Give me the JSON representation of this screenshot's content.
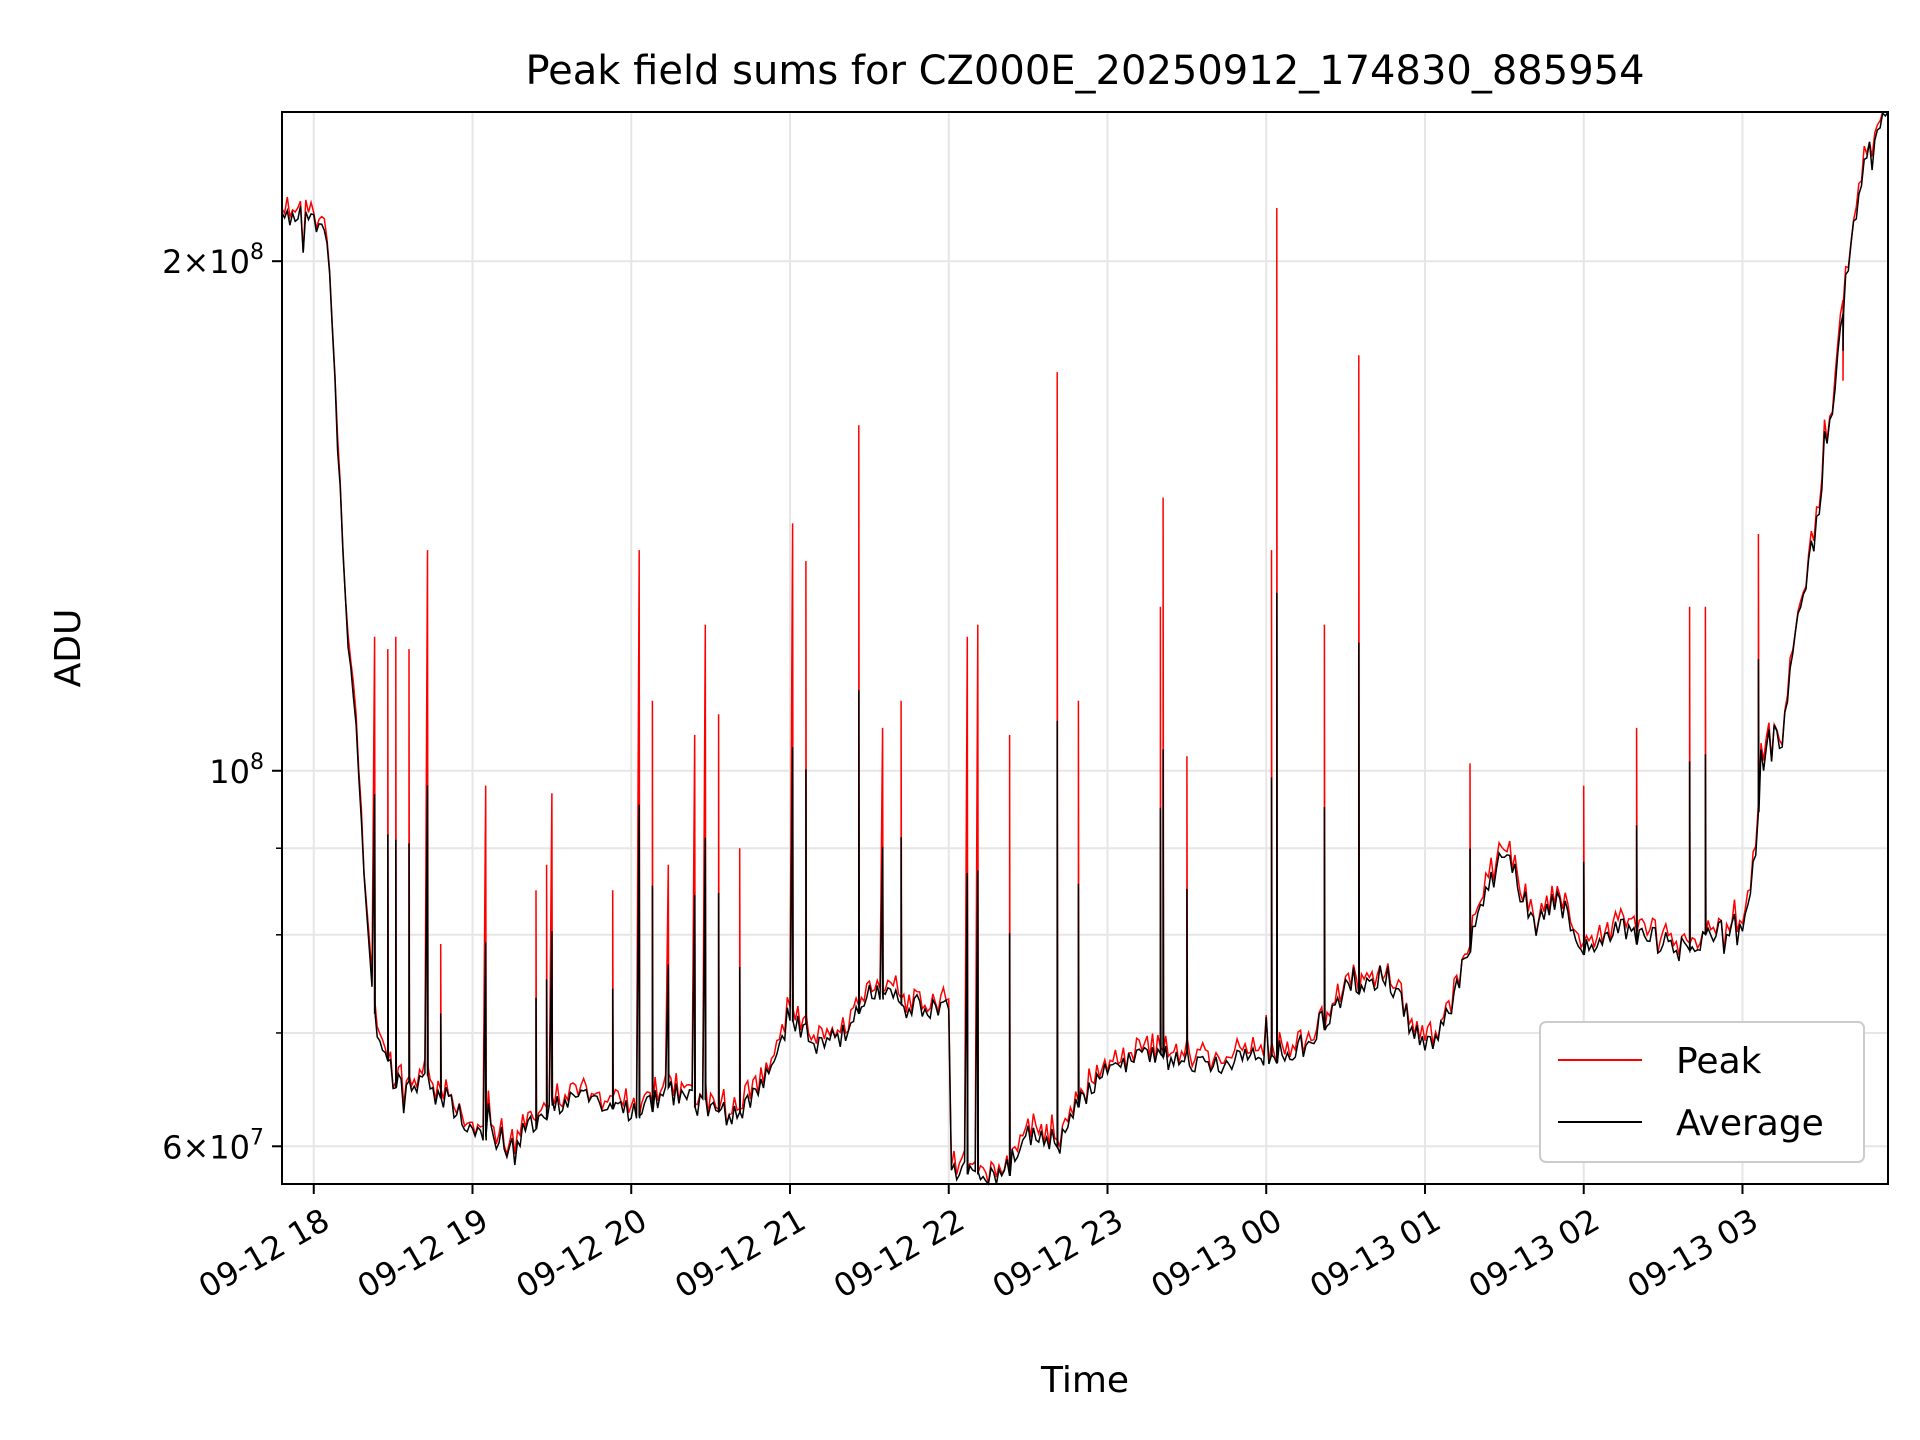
{
  "chart_data": {
    "type": "line",
    "title": "Peak field sums for CZ000E_20250912_174830_885954",
    "xlabel": "Time",
    "ylabel": "ADU",
    "yscale": "log",
    "ylim": [
      57000000,
      245000000
    ],
    "xlim": [
      "2025-09-12 17:48",
      "2025-09-13 03:55"
    ],
    "grid": true,
    "legend_position": "lower-right",
    "x_ticks": [
      {
        "t": "2025-09-12 18:00",
        "label": "09-12 18"
      },
      {
        "t": "2025-09-12 19:00",
        "label": "09-12 19"
      },
      {
        "t": "2025-09-12 20:00",
        "label": "09-12 20"
      },
      {
        "t": "2025-09-12 21:00",
        "label": "09-12 21"
      },
      {
        "t": "2025-09-12 22:00",
        "label": "09-12 22"
      },
      {
        "t": "2025-09-12 23:00",
        "label": "09-12 23"
      },
      {
        "t": "2025-09-13 00:00",
        "label": "09-13 00"
      },
      {
        "t": "2025-09-13 01:00",
        "label": "09-13 01"
      },
      {
        "t": "2025-09-13 02:00",
        "label": "09-13 02"
      },
      {
        "t": "2025-09-13 03:00",
        "label": "09-13 03"
      }
    ],
    "y_ticks": [
      {
        "value": 60000000,
        "base": "6",
        "exp": "7"
      },
      {
        "value": 100000000,
        "base": "",
        "exp": "8"
      },
      {
        "value": 200000000,
        "base": "2",
        "exp": "8"
      }
    ],
    "y_minor_ticks": [
      70000000,
      80000000,
      90000000
    ],
    "baseline": [
      [
        "2025-09-12 17:48",
        215000000
      ],
      [
        "2025-09-12 17:55",
        212000000
      ],
      [
        "2025-09-12 18:03",
        211000000
      ],
      [
        "2025-09-12 18:06",
        200000000
      ],
      [
        "2025-09-12 18:08",
        170000000
      ],
      [
        "2025-09-12 18:10",
        145000000
      ],
      [
        "2025-09-12 18:13",
        118000000
      ],
      [
        "2025-09-12 18:16",
        105000000
      ],
      [
        "2025-09-12 18:19",
        88000000
      ],
      [
        "2025-09-12 18:21",
        76000000
      ],
      [
        "2025-09-12 18:24",
        70000000
      ],
      [
        "2025-09-12 18:30",
        66000000
      ],
      [
        "2025-09-12 18:40",
        65000000
      ],
      [
        "2025-09-12 18:50",
        64000000
      ],
      [
        "2025-09-12 19:00",
        61000000
      ],
      [
        "2025-09-12 19:15",
        60500000
      ],
      [
        "2025-09-12 19:30",
        63000000
      ],
      [
        "2025-09-12 19:45",
        64000000
      ],
      [
        "2025-09-12 20:00",
        63000000
      ],
      [
        "2025-09-12 20:15",
        64500000
      ],
      [
        "2025-09-12 20:30",
        63000000
      ],
      [
        "2025-09-12 20:40",
        62500000
      ],
      [
        "2025-09-12 20:50",
        65000000
      ],
      [
        "2025-09-12 21:00",
        71000000
      ],
      [
        "2025-09-12 21:10",
        69000000
      ],
      [
        "2025-09-12 21:20",
        70000000
      ],
      [
        "2025-09-12 21:30",
        74000000
      ],
      [
        "2025-09-12 21:40",
        73000000
      ],
      [
        "2025-09-12 21:50",
        72000000
      ],
      [
        "2025-09-12 22:00",
        73000000
      ],
      [
        "2025-09-12 22:01",
        57800000
      ],
      [
        "2025-09-12 22:10",
        58500000
      ],
      [
        "2025-09-12 22:20",
        57500000
      ],
      [
        "2025-09-12 22:30",
        61000000
      ],
      [
        "2025-09-12 22:40",
        60000000
      ],
      [
        "2025-09-12 22:50",
        64000000
      ],
      [
        "2025-09-12 23:00",
        67000000
      ],
      [
        "2025-09-12 23:15",
        68000000
      ],
      [
        "2025-09-12 23:30",
        67500000
      ],
      [
        "2025-09-12 23:45",
        67000000
      ],
      [
        "2025-09-13 00:00",
        68000000
      ],
      [
        "2025-09-13 00:15",
        69000000
      ],
      [
        "2025-09-13 00:30",
        74000000
      ],
      [
        "2025-09-13 00:45",
        76000000
      ],
      [
        "2025-09-13 01:00",
        68000000
      ],
      [
        "2025-09-13 01:10",
        73000000
      ],
      [
        "2025-09-13 01:20",
        82000000
      ],
      [
        "2025-09-13 01:30",
        90000000
      ],
      [
        "2025-09-13 01:40",
        82000000
      ],
      [
        "2025-09-13 01:50",
        84000000
      ],
      [
        "2025-09-13 02:00",
        79000000
      ],
      [
        "2025-09-13 02:15",
        81000000
      ],
      [
        "2025-09-13 02:30",
        79000000
      ],
      [
        "2025-09-13 02:40",
        78000000
      ],
      [
        "2025-09-13 02:50",
        81000000
      ],
      [
        "2025-09-13 03:00",
        80000000
      ],
      [
        "2025-09-13 03:05",
        90000000
      ],
      [
        "2025-09-13 03:10",
        106000000
      ],
      [
        "2025-09-13 03:15",
        104000000
      ],
      [
        "2025-09-13 03:20",
        120000000
      ],
      [
        "2025-09-13 03:30",
        145000000
      ],
      [
        "2025-09-13 03:40",
        200000000
      ],
      [
        "2025-09-13 03:48",
        235000000
      ],
      [
        "2025-09-13 03:55",
        245000000
      ]
    ],
    "spikes": [
      [
        "2025-09-12 18:23",
        120000000
      ],
      [
        "2025-09-12 18:28",
        118000000
      ],
      [
        "2025-09-12 18:31",
        120000000
      ],
      [
        "2025-09-12 18:36",
        118000000
      ],
      [
        "2025-09-12 18:43",
        135000000
      ],
      [
        "2025-09-12 18:48",
        79000000
      ],
      [
        "2025-09-12 19:05",
        98000000
      ],
      [
        "2025-09-12 19:24",
        85000000
      ],
      [
        "2025-09-12 19:28",
        88000000
      ],
      [
        "2025-09-12 19:30",
        97000000
      ],
      [
        "2025-09-12 19:53",
        85000000
      ],
      [
        "2025-09-12 20:03",
        135000000
      ],
      [
        "2025-09-12 20:08",
        110000000
      ],
      [
        "2025-09-12 20:14",
        88000000
      ],
      [
        "2025-09-12 20:24",
        105000000
      ],
      [
        "2025-09-12 20:28",
        122000000
      ],
      [
        "2025-09-12 20:33",
        108000000
      ],
      [
        "2025-09-12 20:41",
        90000000
      ],
      [
        "2025-09-12 21:01",
        140000000
      ],
      [
        "2025-09-12 21:06",
        133000000
      ],
      [
        "2025-09-12 21:26",
        160000000
      ],
      [
        "2025-09-12 21:35",
        106000000
      ],
      [
        "2025-09-12 21:42",
        110000000
      ],
      [
        "2025-09-12 22:07",
        120000000
      ],
      [
        "2025-09-12 22:11",
        122000000
      ],
      [
        "2025-09-12 22:23",
        105000000
      ],
      [
        "2025-09-12 22:41",
        172000000
      ],
      [
        "2025-09-12 22:49",
        110000000
      ],
      [
        "2025-09-12 23:20",
        125000000
      ],
      [
        "2025-09-12 23:21",
        145000000
      ],
      [
        "2025-09-12 23:30",
        102000000
      ],
      [
        "2025-09-13 00:02",
        135000000
      ],
      [
        "2025-09-13 00:04",
        215000000
      ],
      [
        "2025-09-13 00:22",
        122000000
      ],
      [
        "2025-09-13 00:35",
        176000000
      ],
      [
        "2025-09-13 01:17",
        101000000
      ],
      [
        "2025-09-13 02:00",
        98000000
      ],
      [
        "2025-09-13 02:20",
        106000000
      ],
      [
        "2025-09-13 02:40",
        125000000
      ],
      [
        "2025-09-13 02:46",
        125000000
      ],
      [
        "2025-09-13 03:06",
        138000000
      ],
      [
        "2025-09-13 03:38",
        170000000
      ]
    ],
    "series": [
      {
        "name": "Peak",
        "color": "#ff0000"
      },
      {
        "name": "Average",
        "color": "#000000"
      }
    ]
  }
}
